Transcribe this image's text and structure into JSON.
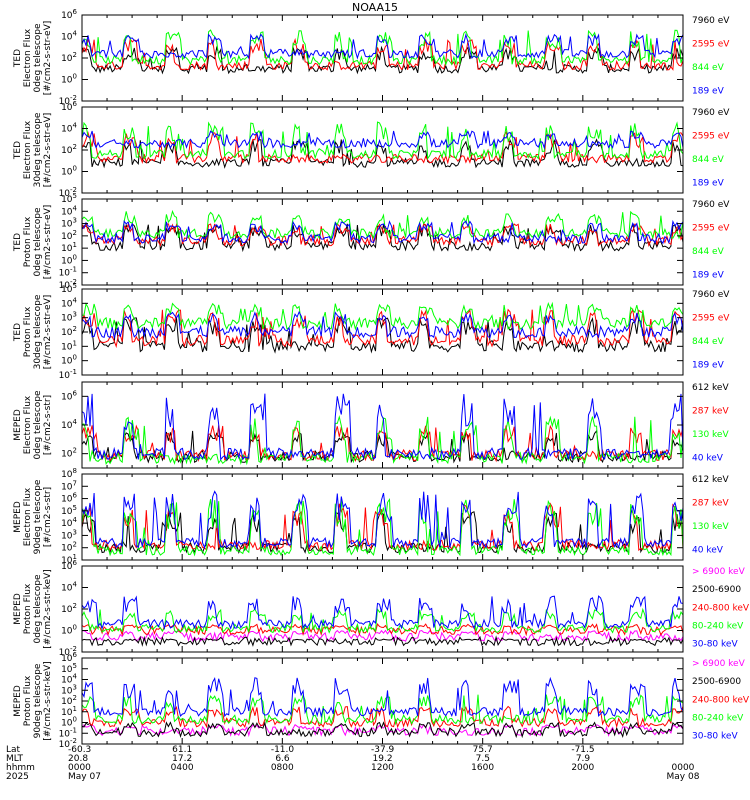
{
  "title": "NOAA15",
  "colors": {
    "black": "#000000",
    "red": "#ff0000",
    "green": "#00ff00",
    "blue": "#0000ff",
    "magenta": "#ff00ff"
  },
  "chart_data": [
    {
      "type": "line",
      "ylabel": [
        "TED",
        "Electron Flux",
        "0deg telescope",
        "[#/cm2-s-str-eV]"
      ],
      "yscale": "log",
      "ylim_exp": [
        -2,
        6
      ],
      "tick_exp": [
        -2,
        0,
        2,
        4,
        6
      ],
      "series": [
        {
          "name": "7960 eV",
          "color": "#000000"
        },
        {
          "name": "2595 eV",
          "color": "#ff0000"
        },
        {
          "name": "844 eV",
          "color": "#00ff00"
        },
        {
          "name": "189 eV",
          "color": "#0000ff"
        }
      ],
      "baseline_exp": [
        1.0,
        1.3,
        1.8,
        2.4
      ],
      "peak_exp": [
        3.0,
        3.8,
        4.6,
        4.2
      ],
      "peak_prob": [
        0.15,
        0.25,
        0.35,
        0.35
      ]
    },
    {
      "type": "line",
      "ylabel": [
        "TED",
        "Electron Flux",
        "30deg telescope",
        "[#/cm2-s-str-eV]"
      ],
      "yscale": "log",
      "ylim_exp": [
        -2,
        6
      ],
      "tick_exp": [
        -2,
        0,
        2,
        4,
        6
      ],
      "series": [
        {
          "name": "7960 eV",
          "color": "#000000"
        },
        {
          "name": "2595 eV",
          "color": "#ff0000"
        },
        {
          "name": "844 eV",
          "color": "#00ff00"
        },
        {
          "name": "189 eV",
          "color": "#0000ff"
        }
      ],
      "baseline_exp": [
        0.8,
        1.2,
        1.6,
        2.6
      ],
      "peak_exp": [
        3.0,
        3.8,
        4.6,
        3.8
      ],
      "peak_prob": [
        0.15,
        0.25,
        0.35,
        0.35
      ]
    },
    {
      "type": "line",
      "ylabel": [
        "TED",
        "Proton Flux",
        "0deg telescope",
        "[#/cm2-s-str-eV]"
      ],
      "yscale": "log",
      "ylim_exp": [
        -2,
        5
      ],
      "tick_exp": [
        -2,
        -1,
        0,
        1,
        2,
        3,
        4,
        5
      ],
      "series": [
        {
          "name": "7960 eV",
          "color": "#000000"
        },
        {
          "name": "2595 eV",
          "color": "#ff0000"
        },
        {
          "name": "844 eV",
          "color": "#00ff00"
        },
        {
          "name": "189 eV",
          "color": "#0000ff"
        }
      ],
      "baseline_exp": [
        1.2,
        1.6,
        2.2,
        1.8
      ],
      "peak_exp": [
        3.0,
        3.0,
        4.0,
        3.2
      ],
      "peak_prob": [
        0.4,
        0.3,
        0.3,
        0.3
      ]
    },
    {
      "type": "line",
      "ylabel": [
        "TED",
        "Proton Flux",
        "30deg telescope",
        "[#/cm2-s-str-eV]"
      ],
      "yscale": "log",
      "ylim_exp": [
        -1,
        5
      ],
      "tick_exp": [
        -1,
        0,
        1,
        2,
        3,
        4,
        5
      ],
      "series": [
        {
          "name": "7960 eV",
          "color": "#000000"
        },
        {
          "name": "2595 eV",
          "color": "#ff0000"
        },
        {
          "name": "844 eV",
          "color": "#00ff00"
        },
        {
          "name": "189 eV",
          "color": "#0000ff"
        }
      ],
      "baseline_exp": [
        1.0,
        1.4,
        2.6,
        2.0
      ],
      "peak_exp": [
        3.0,
        3.6,
        4.0,
        3.4
      ],
      "peak_prob": [
        0.4,
        0.3,
        0.3,
        0.3
      ]
    },
    {
      "type": "line",
      "ylabel": [
        "MEPED",
        "Electron Flux",
        "0deg telescope",
        "[#/cm2-s-str]"
      ],
      "yscale": "log",
      "ylim_exp": [
        1,
        7
      ],
      "tick_exp": [
        2,
        4,
        6
      ],
      "series": [
        {
          "name": "612 keV",
          "color": "#000000"
        },
        {
          "name": "287 keV",
          "color": "#ff0000"
        },
        {
          "name": "130 keV",
          "color": "#00ff00"
        },
        {
          "name": "40 keV",
          "color": "#0000ff"
        }
      ],
      "baseline_exp": [
        1.8,
        1.9,
        1.7,
        2.0
      ],
      "peak_exp": [
        3.6,
        4.0,
        4.6,
        6.2
      ],
      "peak_prob": [
        0.2,
        0.2,
        0.2,
        0.25
      ]
    },
    {
      "type": "line",
      "ylabel": [
        "MEPED",
        "Electron Flux",
        "90deg telescope",
        "[#/cm2-s-str]"
      ],
      "yscale": "log",
      "ylim_exp": [
        1,
        8
      ],
      "tick_exp": [
        1,
        2,
        3,
        4,
        5,
        6,
        7,
        8
      ],
      "series": [
        {
          "name": "612 keV",
          "color": "#000000"
        },
        {
          "name": "287 keV",
          "color": "#ff0000"
        },
        {
          "name": "130 keV",
          "color": "#00ff00"
        },
        {
          "name": "40 keV",
          "color": "#0000ff"
        }
      ],
      "baseline_exp": [
        2.0,
        2.2,
        1.8,
        2.4
      ],
      "peak_exp": [
        5.0,
        5.6,
        6.0,
        6.6
      ],
      "peak_prob": [
        0.35,
        0.3,
        0.3,
        0.35
      ]
    },
    {
      "type": "line",
      "ylabel": [
        "MEPED",
        "Proton Flux",
        "0deg telescope",
        "[#/cm2-s-str-keV]"
      ],
      "yscale": "log",
      "ylim_exp": [
        -2,
        6
      ],
      "tick_exp": [
        -2,
        0,
        2,
        4,
        6
      ],
      "series": [
        {
          "name": "> 6900 keV",
          "color": "#ff00ff"
        },
        {
          "name": "2500-6900",
          "color": "#000000"
        },
        {
          "name": "240-800 keV",
          "color": "#ff0000"
        },
        {
          "name": "80-240 keV",
          "color": "#00ff00"
        },
        {
          "name": "30-80 keV",
          "color": "#0000ff"
        }
      ],
      "baseline_exp": [
        -0.6,
        -1.0,
        0.0,
        0.2,
        0.6
      ],
      "peak_exp": [
        0.0,
        -0.8,
        0.6,
        2.0,
        3.2
      ],
      "peak_prob": [
        0.1,
        0.05,
        0.15,
        0.3,
        0.3
      ]
    },
    {
      "type": "line",
      "ylabel": [
        "MEPED",
        "Proton Flux",
        "90deg telescope",
        "[#/cm2-s-str-keV]"
      ],
      "yscale": "log",
      "ylim_exp": [
        -2,
        6
      ],
      "tick_exp": [
        -2,
        -1,
        0,
        1,
        2,
        3,
        4,
        5,
        6
      ],
      "series": [
        {
          "name": "> 6900 keV",
          "color": "#ff00ff"
        },
        {
          "name": "2500-6900",
          "color": "#000000"
        },
        {
          "name": "240-800 keV",
          "color": "#ff0000"
        },
        {
          "name": "80-240 keV",
          "color": "#00ff00"
        },
        {
          "name": "30-80 keV",
          "color": "#0000ff"
        }
      ],
      "baseline_exp": [
        -0.8,
        -0.9,
        0.0,
        0.3,
        1.0
      ],
      "peak_exp": [
        -0.2,
        0.0,
        1.5,
        2.6,
        4.2
      ],
      "peak_prob": [
        0.1,
        0.1,
        0.2,
        0.35,
        0.35
      ]
    }
  ],
  "footer": {
    "row_labels": [
      "Lat",
      "MLT",
      "hhmm",
      "2025"
    ],
    "columns": [
      {
        "lines": [
          "-60.3",
          "20.8",
          "0000",
          "May 07"
        ]
      },
      {
        "lines": [
          "61.1",
          "17.2",
          "0400",
          ""
        ]
      },
      {
        "lines": [
          "-11.0",
          "6.6",
          "0800",
          ""
        ]
      },
      {
        "lines": [
          "-37.9",
          "19.2",
          "1200",
          ""
        ]
      },
      {
        "lines": [
          "75.7",
          "7.5",
          "1600",
          ""
        ]
      },
      {
        "lines": [
          "-71.5",
          "7.9",
          "2000",
          ""
        ]
      },
      {
        "lines": [
          "",
          "",
          "0000",
          "May 08"
        ]
      }
    ]
  }
}
